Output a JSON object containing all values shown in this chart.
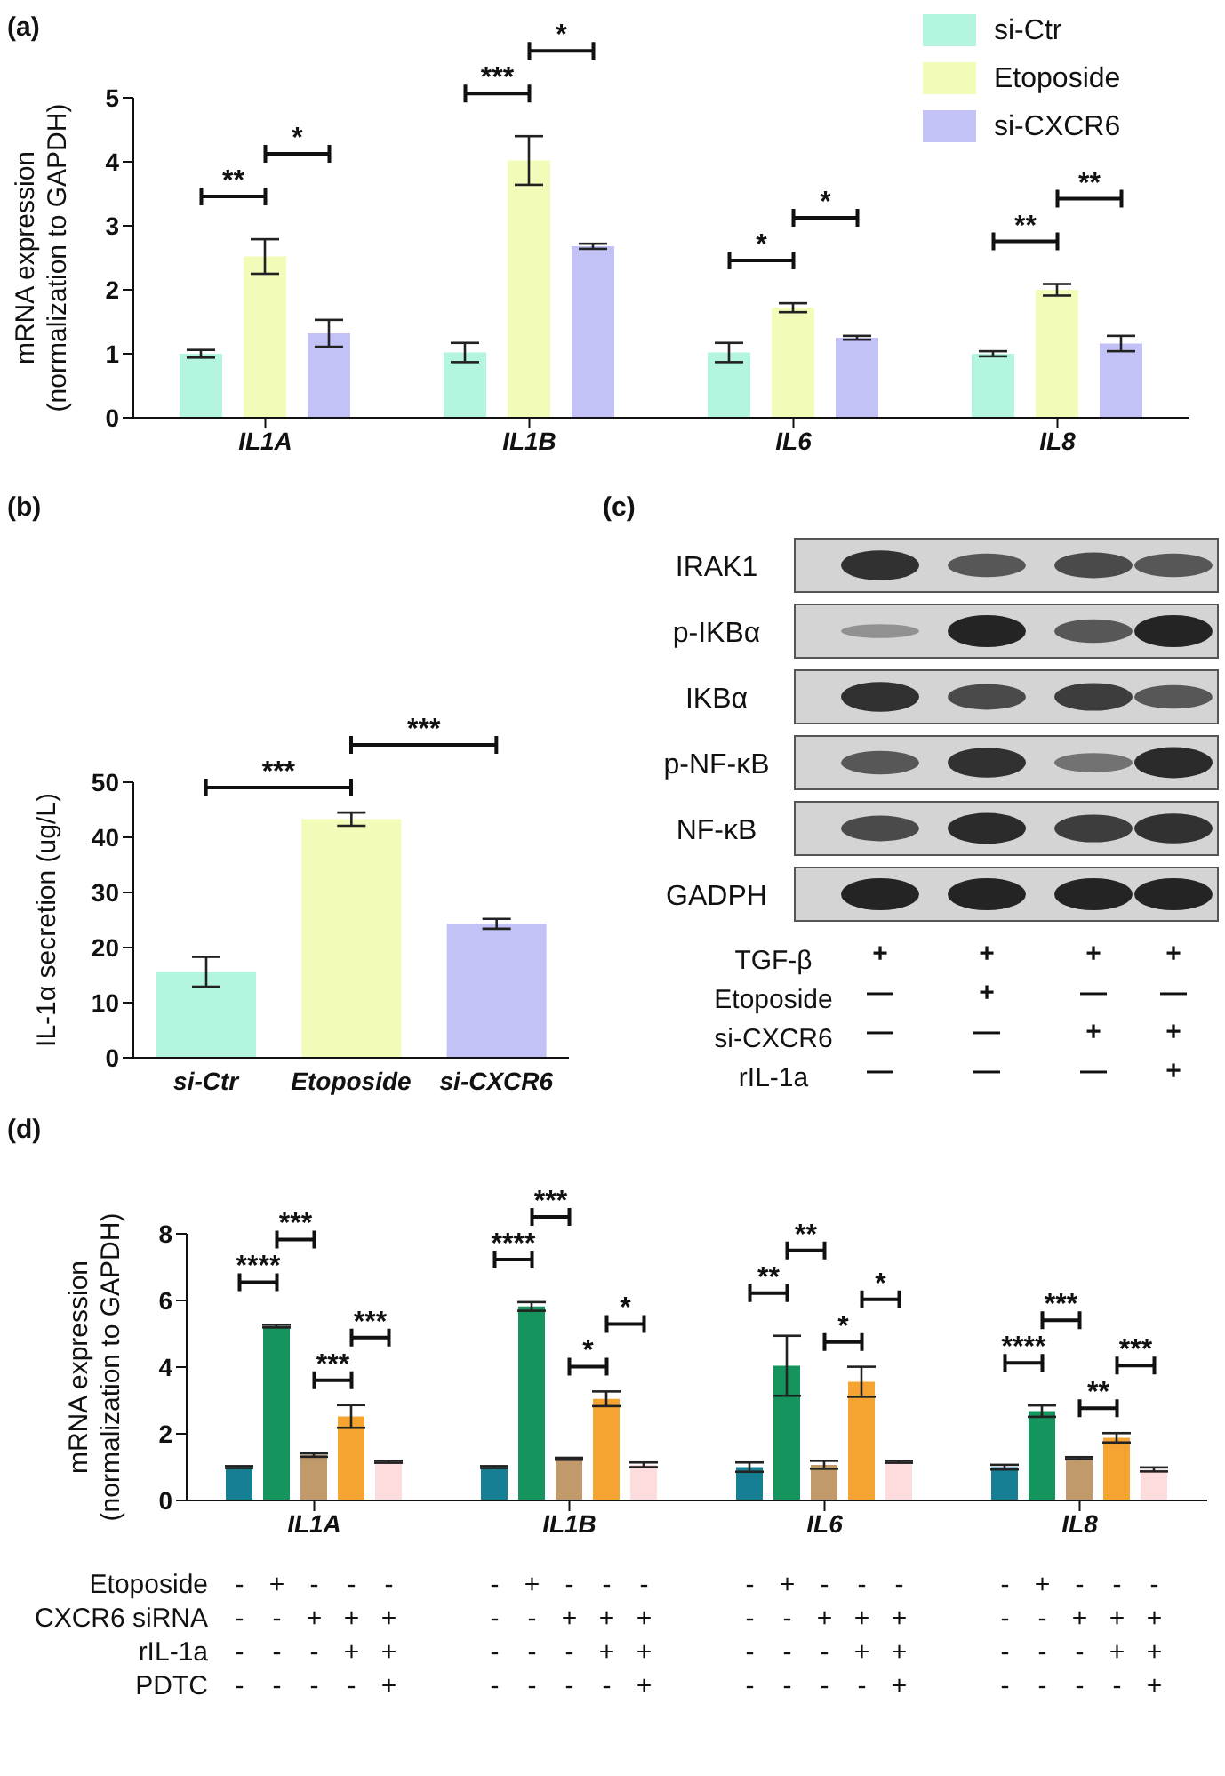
{
  "chart_data": [
    {
      "type": "bar",
      "title": "(a)",
      "ylabel": "mRNA expression (normalization to GAPDH)",
      "categories": [
        "IL1A",
        "IL1B",
        "IL6",
        "IL8"
      ],
      "ylim": [
        0,
        5
      ],
      "yticks": [
        0,
        1,
        2,
        3,
        4,
        5
      ],
      "legend": "top right",
      "series": [
        {
          "name": "si-Ctr",
          "color": "#b3f5df",
          "values": [
            1.0,
            1.02,
            1.02,
            1.0
          ],
          "errors": [
            0.06,
            0.15,
            0.15,
            0.04
          ]
        },
        {
          "name": "Etoposide",
          "color": "#f2fbb8",
          "values": [
            2.52,
            4.02,
            1.72,
            2.0
          ],
          "errors": [
            0.27,
            0.38,
            0.07,
            0.09
          ]
        },
        {
          "name": "si-CXCR6",
          "color": "#c2c2f7",
          "values": [
            1.32,
            2.68,
            1.25,
            1.16
          ],
          "errors": [
            0.21,
            0.04,
            0.03,
            0.12
          ]
        }
      ],
      "annotations": [
        "**",
        "*",
        "***",
        "*",
        "*",
        "*",
        "**",
        "**"
      ]
    },
    {
      "type": "bar",
      "title": "(b)",
      "ylabel": "IL-1α secretion (ug/L)",
      "categories": [
        "si-Ctr",
        "Etoposide",
        "si-CXCR6"
      ],
      "values": [
        15.6,
        43.3,
        24.3
      ],
      "errors": [
        2.7,
        1.2,
        0.9
      ],
      "colors": [
        "#b3f5df",
        "#f2fbb8",
        "#c2c2f7"
      ],
      "ylim": [
        0,
        50
      ],
      "yticks": [
        0,
        10,
        20,
        30,
        40,
        50
      ],
      "annotations": [
        "***",
        "***"
      ]
    },
    {
      "type": "other",
      "title": "(c)",
      "y_categories": [
        "IRAK1",
        "p-IKBα",
        "IKBα",
        "p-NF-κB",
        "NF-κB",
        "GADPH"
      ],
      "annotations": [
        "TGF-β",
        "+ + + +",
        "Etoposide",
        "— + — —",
        "si-CXCR6",
        "— — + +",
        "rIL-1a",
        "— — — +"
      ]
    },
    {
      "type": "bar",
      "title": "(d)",
      "ylabel": "mRNA expression (normalization to GAPDH)",
      "categories": [
        "IL1A",
        "IL1B",
        "IL6",
        "IL8"
      ],
      "ylim": [
        0,
        8
      ],
      "yticks": [
        0,
        2,
        4,
        6,
        8
      ],
      "series": [
        {
          "color": "#167f94",
          "values": [
            1.0,
            1.0,
            1.0,
            1.0
          ],
          "errors": [
            0.03,
            0.03,
            0.14,
            0.07
          ]
        },
        {
          "color": "#16945e",
          "values": [
            5.23,
            5.82,
            4.04,
            2.68
          ],
          "errors": [
            0.04,
            0.13,
            0.9,
            0.17
          ]
        },
        {
          "color": "#c09a6b",
          "values": [
            1.36,
            1.25,
            1.07,
            1.27
          ],
          "errors": [
            0.05,
            0.03,
            0.12,
            0.03
          ]
        },
        {
          "color": "#f5a431",
          "values": [
            2.52,
            3.05,
            3.56,
            1.88
          ],
          "errors": [
            0.34,
            0.22,
            0.45,
            0.14
          ]
        },
        {
          "color": "#fcdcdc",
          "values": [
            1.16,
            1.07,
            1.16,
            0.93
          ],
          "errors": [
            0.03,
            0.07,
            0.03,
            0.06
          ]
        }
      ],
      "annotations": [
        "****",
        "***",
        "***",
        "***",
        "****",
        "***",
        "*",
        "*",
        "**",
        "**",
        "*",
        "*",
        "****",
        "***",
        "**",
        "***",
        "Etoposide",
        "- + - - - - + - - - - + - - - - + - - -",
        "CXCR6 siRNA",
        "- - + + + - - + + + - - + + + - - + + +",
        "rIL-1a",
        "- - - + + - - - + + - - - + + - - - + +",
        "PDTC",
        "- - - - + - - - - + - - - - + - - - - +"
      ]
    }
  ]
}
